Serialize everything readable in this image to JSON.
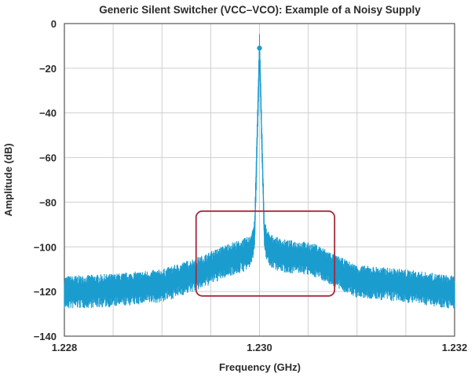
{
  "chart_data": {
    "type": "line",
    "title": "Generic Silent Switcher (VCC–VCO): Example of a Noisy Supply",
    "xlabel": "Frequency (GHz)",
    "ylabel": "Amplitude (dB)",
    "xlim": [
      1.228,
      1.232
    ],
    "ylim": [
      -140,
      0
    ],
    "x_ticks": [
      "1.228",
      "1.230",
      "1.232"
    ],
    "y_ticks": [
      "0",
      "−20",
      "−40",
      "−60",
      "−80",
      "−100",
      "−120",
      "−140"
    ],
    "grid": true,
    "series": [
      {
        "color": "#1a9ccf",
        "x": [
          1.228,
          1.2285,
          1.229,
          1.2292,
          1.2294,
          1.2296,
          1.2297,
          1.2298,
          1.2299,
          1.22995,
          1.23,
          1.23005,
          1.2301,
          1.2302,
          1.2303,
          1.2304,
          1.2305,
          1.2306,
          1.2308,
          1.231,
          1.2315,
          1.232
        ],
        "y": [
          -120,
          -119,
          -117,
          -114,
          -111,
          -107,
          -105,
          -104,
          -102,
          -95,
          -11,
          -95,
          -101,
          -103,
          -104,
          -104,
          -105,
          -106,
          -111,
          -115,
          -117,
          -120
        ]
      }
    ],
    "annotations": [
      {
        "type": "rectangle",
        "color": "#a8283c",
        "x_range": [
          1.22935,
          1.23077
        ],
        "y_range": [
          -122,
          -84
        ]
      }
    ]
  }
}
